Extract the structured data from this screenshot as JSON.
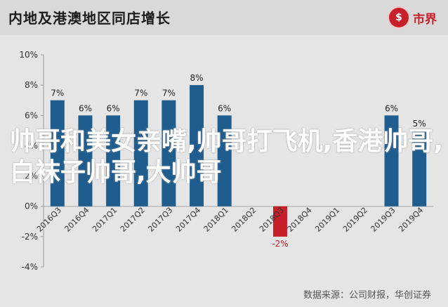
{
  "header": {
    "title": "内地及港澳地区同店增长",
    "brand_name": "市界",
    "brand_icon": "logo-icon"
  },
  "source_text": "数据来源：公司财报，华创证券",
  "overlay_text": "帅哥和美女亲嘴,帅哥打飞机,香港帅哥,白袜子帅哥,大帅哥",
  "colors": {
    "bar": "#1f5d8f",
    "negative_bar": "#c8202a",
    "negative_label": "#c8202a"
  },
  "chart_data": {
    "type": "bar",
    "categories": [
      "2016Q3",
      "2016Q4",
      "2017Q1",
      "2017Q2",
      "2017Q3",
      "2017Q4",
      "2018Q1",
      "2018Q2",
      "2018Q3",
      "2018Q4",
      "2019Q1",
      "2019Q2",
      "2019Q3",
      "2019Q4"
    ],
    "values": [
      7,
      6,
      6,
      7,
      7,
      8,
      6,
      null,
      -2,
      null,
      null,
      null,
      6,
      5
    ],
    "data_labels": [
      "7%",
      "6%",
      "6%",
      "7%",
      "7%",
      "8%",
      "6%",
      "",
      "-2%",
      "",
      "",
      "",
      "6%",
      "5%"
    ],
    "ylim": [
      -4,
      10
    ],
    "yticks": [
      "-4%",
      "-2%",
      "0%",
      "2%",
      "4%",
      "6%",
      "8%",
      "10%"
    ],
    "grid": false
  }
}
